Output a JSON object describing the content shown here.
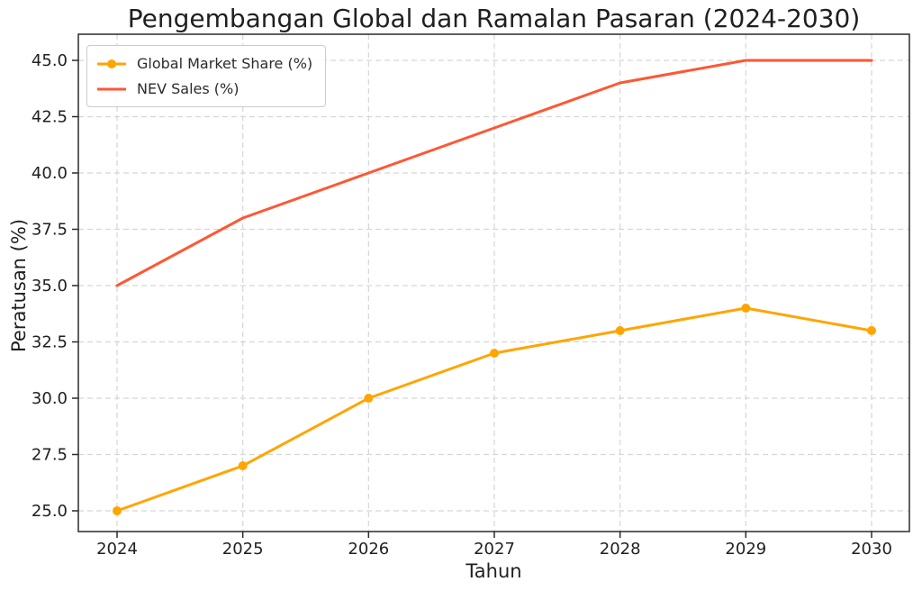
{
  "chart_data": {
    "type": "line",
    "title": "Pengembangan Global dan Ramalan Pasaran (2024-2030)",
    "xlabel": "Tahun",
    "ylabel": "Peratusan (%)",
    "categories": [
      "2024",
      "2025",
      "2026",
      "2027",
      "2028",
      "2029",
      "2030"
    ],
    "series": [
      {
        "name": "Global Market Share (%)",
        "values": [
          25,
          27,
          30,
          32,
          33,
          34,
          33
        ],
        "color": "#FFA500",
        "marker": "circle"
      },
      {
        "name": "NEV Sales (%)",
        "values": [
          35,
          38,
          40,
          42,
          44,
          45,
          45
        ],
        "color": "#FF5733",
        "marker": "none"
      }
    ],
    "ylim": [
      25,
      45
    ],
    "yticks": [
      25,
      27.5,
      30,
      32.5,
      35,
      37.5,
      40,
      42.5,
      45
    ],
    "ytick_labels": [
      "25.0",
      "27.5",
      "30.0",
      "32.5",
      "35.0",
      "37.5",
      "40.0",
      "42.5",
      "45.0"
    ],
    "grid": true,
    "grid_style": "dashed",
    "legend_position": "upper-left"
  },
  "colors": {
    "grid": "#d6d6d6",
    "spine": "#2a2a2a",
    "tick_text": "#1f1f1f",
    "legend_border": "#cccccc",
    "background": "#ffffff"
  }
}
